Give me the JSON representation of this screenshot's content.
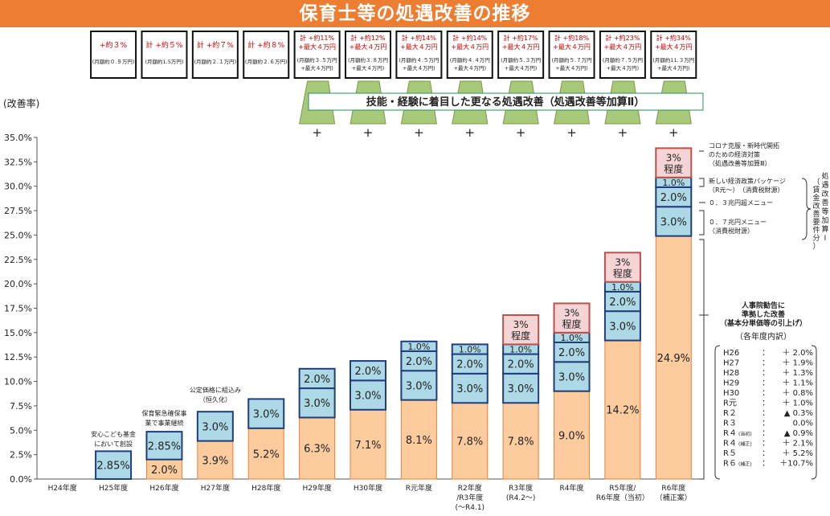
{
  "header": {
    "title": "保育士等の処遇改善の推移"
  },
  "colors": {
    "banner": "#ED7D31",
    "base_bar": "#FCCB9E",
    "base_stroke": "#ED7D31",
    "blue_fill": "#ADD8E6",
    "blue_stroke": "#1F3E7A",
    "pink_fill": "#F4D4D4",
    "pink_stroke": "#C0504D",
    "green_fill": "#A9C97A",
    "red_text": "#C00000"
  },
  "y_axis_title": "(改善率)",
  "skill_banner": "技能・経験に着目した更なる処遇改善（処遇改善等加算Ⅱ）",
  "plus_sign": "+",
  "boxes": [
    {
      "line1": "+約３%",
      "line2": "(月額約０.９万円)"
    },
    {
      "line1": "計 +約５%",
      "line2": "(月額約1.5万円)"
    },
    {
      "line1": "計 +約７%",
      "line2": "(月額約２.１万円)"
    },
    {
      "line1": "計 +約８%",
      "line2": "(月額約２.６万円)"
    },
    {
      "line1": "計 +約11%",
      "line1b": "+最大４万円",
      "line2": "(月額約３.５万円",
      "line2b": "+最大４万円)"
    },
    {
      "line1": "計 +約12%",
      "line1b": "+最大４万円",
      "line2": "(月額約３.８万円",
      "line2b": "+最大４万円)"
    },
    {
      "line1": "計 +約14%",
      "line1b": "+最大４万円",
      "line2": "(月額約４.５万円",
      "line2b": "+最大４万円)"
    },
    {
      "line1": "計 +約14%",
      "line1b": "+最大４万円",
      "line2": "(月額約４.４万円",
      "line2b": "+最大４万円)"
    },
    {
      "line1": "計 +約17%",
      "line1b": "+最大４万円",
      "line2": "(月額約５.３万円",
      "line2b": "+最大４万円)"
    },
    {
      "line1": "計 +約18%",
      "line1b": "+最大４万円",
      "line2": "(月額約５.７万円",
      "line2b": "+最大４万円)"
    },
    {
      "line1": "計 +約23%",
      "line1b": "+最大４万円",
      "line2": "(月額約７.５万円",
      "line2b": "+最大４万円)"
    },
    {
      "line1": "計 +約34%",
      "line1b": "+最大４万円",
      "line2": "(月額約11.３万円",
      "line2b": "+最大４万円)"
    }
  ],
  "annotations": {
    "h25": [
      "安心こども基金",
      "において創設"
    ],
    "h26": [
      "保育緊急確保事",
      "業で事業継続"
    ],
    "h27": [
      "公定価格に組込み",
      "（恒久化）"
    ]
  },
  "right_notes": {
    "corona": [
      "コロナ克服・新時代開拓",
      "のための経済対策",
      "（処遇改善等加算Ⅲ）"
    ],
    "new_pkg": [
      "新しい経済政策パッケージ",
      "（R元～）　（消費税財源）"
    ],
    "menu03": "０．３兆円超メニュー",
    "menu07": [
      "０．７兆円メニュー",
      "（消費税財源）"
    ],
    "brace_label": [
      "処",
      "遇",
      "改",
      "善",
      "等",
      "加",
      "算",
      "Ⅰ"
    ],
    "brace_label2": [
      "（",
      "賃",
      "金",
      "改",
      "善",
      "要",
      "件",
      "分",
      "）"
    ],
    "jinji": [
      "人事院勧告に",
      "準拠した改善",
      "（基本分単価等の引上げ）"
    ],
    "breakdown_title": "（各年度内訳）",
    "breakdown": [
      {
        "year": "H26",
        "sep": "：",
        "val": "＋ 2.0%"
      },
      {
        "year": "H27",
        "sep": "：",
        "val": "＋ 1.9%"
      },
      {
        "year": "H28",
        "sep": "：",
        "val": "＋ 1.3%"
      },
      {
        "year": "H29",
        "sep": "：",
        "val": "＋ 1.1%"
      },
      {
        "year": "H30",
        "sep": "：",
        "val": "＋ 0.8%"
      },
      {
        "year": "R元",
        "sep": "：",
        "val": "＋ 1.0%"
      },
      {
        "year": "R２",
        "sep": "：",
        "val": "▲ 0.3%"
      },
      {
        "year": "R３",
        "sep": "：",
        "val": "0.0%"
      },
      {
        "year": "R４",
        "sub": "(当初)",
        "sep": "：",
        "val": "▲ 0.9%"
      },
      {
        "year": "R４",
        "sub": "(補正)",
        "sep": "：",
        "val": "＋ 2.1%"
      },
      {
        "year": "R５",
        "sep": "：",
        "val": "＋ 5.2%"
      },
      {
        "year": "R６",
        "sub": "(補正)",
        "sep": "：",
        "val": "＋10.7%"
      }
    ]
  },
  "chart_data": {
    "type": "bar",
    "stacked": true,
    "ylabel": "(改善率)",
    "ylim": [
      0,
      35
    ],
    "yticks": [
      "0.0%",
      "2.5%",
      "5.0%",
      "7.5%",
      "10.0%",
      "12.5%",
      "15.0%",
      "17.5%",
      "20.0%",
      "22.5%",
      "25.0%",
      "27.5%",
      "30.0%",
      "32.5%",
      "35.0%"
    ],
    "categories": [
      [
        "H24年度"
      ],
      [
        "H25年度"
      ],
      [
        "H26年度"
      ],
      [
        "H27年度"
      ],
      [
        "H28年度"
      ],
      [
        "H29年度"
      ],
      [
        "H30年度"
      ],
      [
        "R元年度"
      ],
      [
        "R2年度",
        "/R3年度",
        "(～R4.1)"
      ],
      [
        "R3年度",
        "(R4.2～)"
      ],
      [
        "R4年度"
      ],
      [
        "R5年度/",
        "R6年度（当初）"
      ],
      [
        "R6年度",
        "（補正案）"
      ]
    ],
    "bars": [
      {
        "segments": []
      },
      {
        "segments": [
          {
            "v": 2.85,
            "label": "2.85%",
            "kind": "blue"
          }
        ]
      },
      {
        "segments": [
          {
            "v": 2.0,
            "label": "2.0%",
            "kind": "base"
          },
          {
            "v": 2.85,
            "label": "2.85%",
            "kind": "blue"
          }
        ]
      },
      {
        "segments": [
          {
            "v": 3.9,
            "label": "3.9%",
            "kind": "base"
          },
          {
            "v": 3.0,
            "label": "3.0%",
            "kind": "blue"
          }
        ]
      },
      {
        "segments": [
          {
            "v": 5.2,
            "label": "5.2%",
            "kind": "base"
          },
          {
            "v": 3.0,
            "label": "3.0%",
            "kind": "blue"
          }
        ]
      },
      {
        "segments": [
          {
            "v": 6.3,
            "label": "6.3%",
            "kind": "base"
          },
          {
            "v": 3.0,
            "label": "3.0%",
            "kind": "blue"
          },
          {
            "v": 2.0,
            "label": "2.0%",
            "kind": "blue"
          }
        ]
      },
      {
        "segments": [
          {
            "v": 7.1,
            "label": "7.1%",
            "kind": "base"
          },
          {
            "v": 3.0,
            "label": "3.0%",
            "kind": "blue"
          },
          {
            "v": 2.0,
            "label": "2.0%",
            "kind": "blue"
          }
        ]
      },
      {
        "segments": [
          {
            "v": 8.1,
            "label": "8.1%",
            "kind": "base"
          },
          {
            "v": 3.0,
            "label": "3.0%",
            "kind": "blue"
          },
          {
            "v": 2.0,
            "label": "2.0%",
            "kind": "blue"
          },
          {
            "v": 1.0,
            "label": "1.0%",
            "kind": "blue"
          }
        ]
      },
      {
        "segments": [
          {
            "v": 7.8,
            "label": "7.8%",
            "kind": "base"
          },
          {
            "v": 3.0,
            "label": "3.0%",
            "kind": "blue"
          },
          {
            "v": 2.0,
            "label": "2.0%",
            "kind": "blue"
          },
          {
            "v": 1.0,
            "label": "1.0%",
            "kind": "blue"
          }
        ]
      },
      {
        "segments": [
          {
            "v": 7.8,
            "label": "7.8%",
            "kind": "base"
          },
          {
            "v": 3.0,
            "label": "3.0%",
            "kind": "blue"
          },
          {
            "v": 2.0,
            "label": "2.0%",
            "kind": "blue"
          },
          {
            "v": 1.0,
            "label": "1.0%",
            "kind": "blue"
          },
          {
            "v": 3.0,
            "label": "3%\n程度",
            "kind": "pink"
          }
        ]
      },
      {
        "segments": [
          {
            "v": 9.0,
            "label": "9.0%",
            "kind": "base"
          },
          {
            "v": 3.0,
            "label": "3.0%",
            "kind": "blue"
          },
          {
            "v": 2.0,
            "label": "2.0%",
            "kind": "blue"
          },
          {
            "v": 1.0,
            "label": "1.0%",
            "kind": "blue"
          },
          {
            "v": 3.0,
            "label": "3%\n程度",
            "kind": "pink"
          }
        ]
      },
      {
        "segments": [
          {
            "v": 14.2,
            "label": "14.2%",
            "kind": "base"
          },
          {
            "v": 3.0,
            "label": "3.0%",
            "kind": "blue"
          },
          {
            "v": 2.0,
            "label": "2.0%",
            "kind": "blue"
          },
          {
            "v": 1.0,
            "label": "1.0%",
            "kind": "blue"
          },
          {
            "v": 3.0,
            "label": "3%\n程度",
            "kind": "pink"
          }
        ]
      },
      {
        "segments": [
          {
            "v": 24.9,
            "label": "24.9%",
            "kind": "base"
          },
          {
            "v": 3.0,
            "label": "3.0%",
            "kind": "blue"
          },
          {
            "v": 2.0,
            "label": "2.0%",
            "kind": "blue"
          },
          {
            "v": 1.0,
            "label": "1.0%",
            "kind": "blue"
          },
          {
            "v": 3.0,
            "label": "3%\n程度",
            "kind": "pink"
          }
        ]
      }
    ]
  }
}
